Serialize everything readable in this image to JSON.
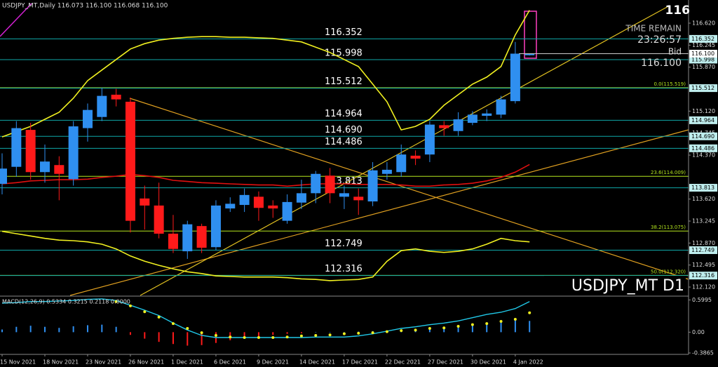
{
  "chart_data": {
    "type": "candlestick",
    "title": "USDJPY_MT,Daily 116.073 116.100 116.068 116.100",
    "categories": [
      "15 Nov 2021",
      null,
      null,
      "18 Nov 2021",
      null,
      null,
      "23 Nov 2021",
      null,
      null,
      "26 Nov 2021",
      null,
      null,
      "1 Dec 2021",
      null,
      null,
      "6 Dec 2021",
      null,
      null,
      "9 Dec 2021",
      null,
      null,
      "14 Dec 2021",
      null,
      null,
      "17 Dec 2021",
      null,
      null,
      "22 Dec 2021",
      null,
      null,
      "27 Dec 2021",
      null,
      null,
      "30 Dec 2021",
      null,
      null,
      "4 Jan 2022",
      null
    ],
    "open": [
      113.88,
      114.17,
      114.8,
      114.08,
      114.2,
      113.96,
      114.83,
      115.02,
      115.4,
      115.28,
      113.63,
      113.51,
      113.03,
      112.73,
      113.16,
      112.8,
      113.46,
      113.52,
      113.66,
      113.51,
      113.25,
      113.56,
      113.72,
      114.02,
      113.66,
      113.66,
      113.58,
      114.05,
      114.08,
      114.36,
      114.38,
      114.88,
      114.78,
      114.92,
      115.04,
      115.06,
      115.29,
      116.073
    ],
    "high": [
      114.4,
      114.95,
      114.92,
      114.55,
      114.35,
      114.95,
      115.25,
      115.52,
      115.5,
      115.35,
      113.85,
      113.9,
      113.35,
      113.25,
      113.2,
      113.6,
      113.65,
      113.8,
      113.75,
      113.6,
      113.7,
      113.95,
      114.1,
      114.15,
      113.85,
      113.8,
      114.25,
      114.25,
      114.55,
      114.45,
      114.95,
      114.95,
      115.1,
      115.12,
      115.15,
      115.38,
      116.3,
      116.1
    ],
    "low": [
      113.7,
      114.0,
      113.95,
      113.9,
      113.6,
      113.85,
      114.6,
      114.95,
      115.2,
      113.05,
      113.1,
      112.95,
      112.7,
      112.6,
      112.7,
      112.75,
      113.4,
      113.4,
      113.25,
      113.3,
      113.2,
      113.45,
      113.55,
      113.55,
      113.45,
      113.35,
      113.5,
      113.95,
      114.0,
      114.2,
      114.25,
      114.7,
      114.7,
      114.88,
      114.95,
      115.0,
      115.25,
      116.068
    ],
    "close": [
      114.14,
      114.83,
      114.08,
      114.26,
      114.05,
      114.86,
      115.14,
      115.38,
      115.32,
      113.25,
      113.51,
      113.03,
      112.77,
      113.19,
      112.79,
      113.51,
      113.54,
      113.69,
      113.47,
      113.46,
      113.57,
      113.72,
      114.05,
      113.72,
      113.72,
      113.6,
      114.11,
      114.12,
      114.38,
      114.31,
      114.89,
      114.83,
      114.98,
      115.06,
      115.08,
      115.32,
      116.1,
      116.1
    ],
    "colors": {
      "up": "#2f8ff0",
      "down": "#ff1a1a"
    },
    "ylim": [
      111.977,
      116.955
    ],
    "yticks": [
      {
        "value": 116.62,
        "label": "116.620"
      },
      116.245,
      {
        "value": 115.87,
        "label": "115.870"
      },
      {
        "value": 115.12,
        "label": "115.120"
      },
      114.745,
      {
        "value": 114.37,
        "label": "114.370"
      },
      {
        "value": 113.62,
        "label": "113.620"
      },
      113.245,
      {
        "value": 112.87,
        "label": "112.870"
      },
      112.495,
      {
        "value": 112.12,
        "label": "112.120"
      }
    ],
    "levels": [
      116.352,
      115.998,
      115.512,
      114.964,
      {
        "value": 114.69,
        "label": "114.690"
      },
      114.486,
      113.813,
      112.749,
      112.316
    ],
    "level_color": "#0fa8a8",
    "fib_levels": [
      {
        "value": 115.519,
        "label": "0.0(115.519)"
      },
      {
        "value": 114.009,
        "label": "23.6(114.009)"
      },
      {
        "value": 113.075,
        "label": "38.2(113.075)"
      },
      {
        "value": 112.32,
        "label": "50.0(112.320)"
      }
    ],
    "fib_color": "#b4e61e",
    "bid": {
      "value": 116.1,
      "label": "116.100"
    },
    "indicators": [
      {
        "color": "#f0f020",
        "values": [
          114.68,
          114.77,
          114.86,
          114.98,
          115.1,
          115.34,
          115.64,
          115.82,
          116.0,
          116.18,
          116.27,
          116.33,
          116.36,
          116.38,
          116.39,
          116.39,
          116.38,
          116.38,
          116.37,
          116.36,
          116.33,
          116.3,
          116.21,
          116.12,
          116.0,
          115.88,
          115.58,
          115.28,
          114.8,
          114.86,
          114.98,
          115.22,
          115.4,
          115.58,
          115.7,
          115.88,
          116.42,
          116.84
        ]
      },
      {
        "color": "#f0f020",
        "values": [
          113.07,
          113.03,
          112.99,
          112.95,
          112.92,
          112.91,
          112.89,
          112.85,
          112.77,
          112.65,
          112.56,
          112.49,
          112.43,
          112.38,
          112.35,
          112.31,
          112.3,
          112.29,
          112.29,
          112.29,
          112.28,
          112.26,
          112.25,
          112.23,
          112.24,
          112.25,
          112.29,
          112.56,
          112.74,
          112.77,
          112.73,
          112.71,
          112.73,
          112.77,
          112.85,
          112.95,
          112.91,
          112.89
        ]
      },
      {
        "color": "#e01010",
        "values": [
          113.88,
          113.9,
          113.93,
          113.94,
          113.95,
          113.95,
          113.96,
          113.99,
          114.01,
          114.04,
          114.02,
          113.99,
          113.94,
          113.92,
          113.9,
          113.89,
          113.88,
          113.87,
          113.86,
          113.86,
          113.84,
          113.86,
          113.88,
          113.88,
          113.88,
          113.87,
          113.87,
          113.87,
          113.86,
          113.84,
          113.84,
          113.86,
          113.87,
          113.89,
          113.93,
          113.99,
          114.08,
          114.21
        ]
      }
    ],
    "big_price": "116",
    "timer_label": "TIME REMAIN",
    "timer": "23:26:57",
    "bid_label": "Bid",
    "symbol": "USDJPY_MT D1",
    "macd": {
      "title": "MACD(12,26,9) 0.5334 0.3215 0.2118 0.0000",
      "ylim": [
        -0.3865,
        0.6575
      ],
      "yticks": [
        0.5995,
        {
          "value": 0,
          "label": "0.00"
        },
        -0.3865
      ],
      "histogram": [
        0.05,
        0.1,
        0.12,
        0.1,
        0.08,
        0.11,
        0.13,
        0.14,
        0.1,
        -0.05,
        -0.12,
        -0.18,
        -0.22,
        -0.25,
        -0.24,
        -0.2,
        -0.15,
        -0.1,
        -0.08,
        -0.05,
        -0.03,
        -0.02,
        0,
        0,
        0,
        0.01,
        0.02,
        0.03,
        0.04,
        0.05,
        0.06,
        0.08,
        0.1,
        0.12,
        0.16,
        0.2,
        0.24,
        0.21
      ],
      "line": [
        0.54,
        0.55,
        0.57,
        0.57,
        0.58,
        0.59,
        0.61,
        0.62,
        0.59,
        0.5,
        0.41,
        0.31,
        0.17,
        0.04,
        -0.06,
        -0.1,
        -0.1,
        -0.1,
        -0.1,
        -0.1,
        -0.1,
        -0.1,
        -0.09,
        -0.09,
        -0.09,
        -0.07,
        -0.03,
        0.02,
        0.07,
        0.1,
        0.14,
        0.17,
        0.21,
        0.27,
        0.33,
        0.37,
        0.44,
        0.57
      ],
      "signal": [
        null,
        null,
        null,
        null,
        null,
        null,
        null,
        null,
        0.57,
        0.49,
        0.38,
        0.28,
        0.16,
        0.07,
        -0.01,
        -0.06,
        -0.09,
        -0.1,
        -0.1,
        -0.1,
        -0.09,
        -0.07,
        -0.06,
        -0.05,
        -0.03,
        -0.02,
        -0.01,
        0.01,
        0.03,
        0.04,
        0.07,
        0.08,
        0.11,
        0.14,
        0.16,
        0.2,
        0.24,
        0.36
      ],
      "line_color": "#20c8e8",
      "signal_color": "#f0f020",
      "hist_up": "#2f8ff0",
      "hist_down": "#ff1a1a"
    }
  }
}
